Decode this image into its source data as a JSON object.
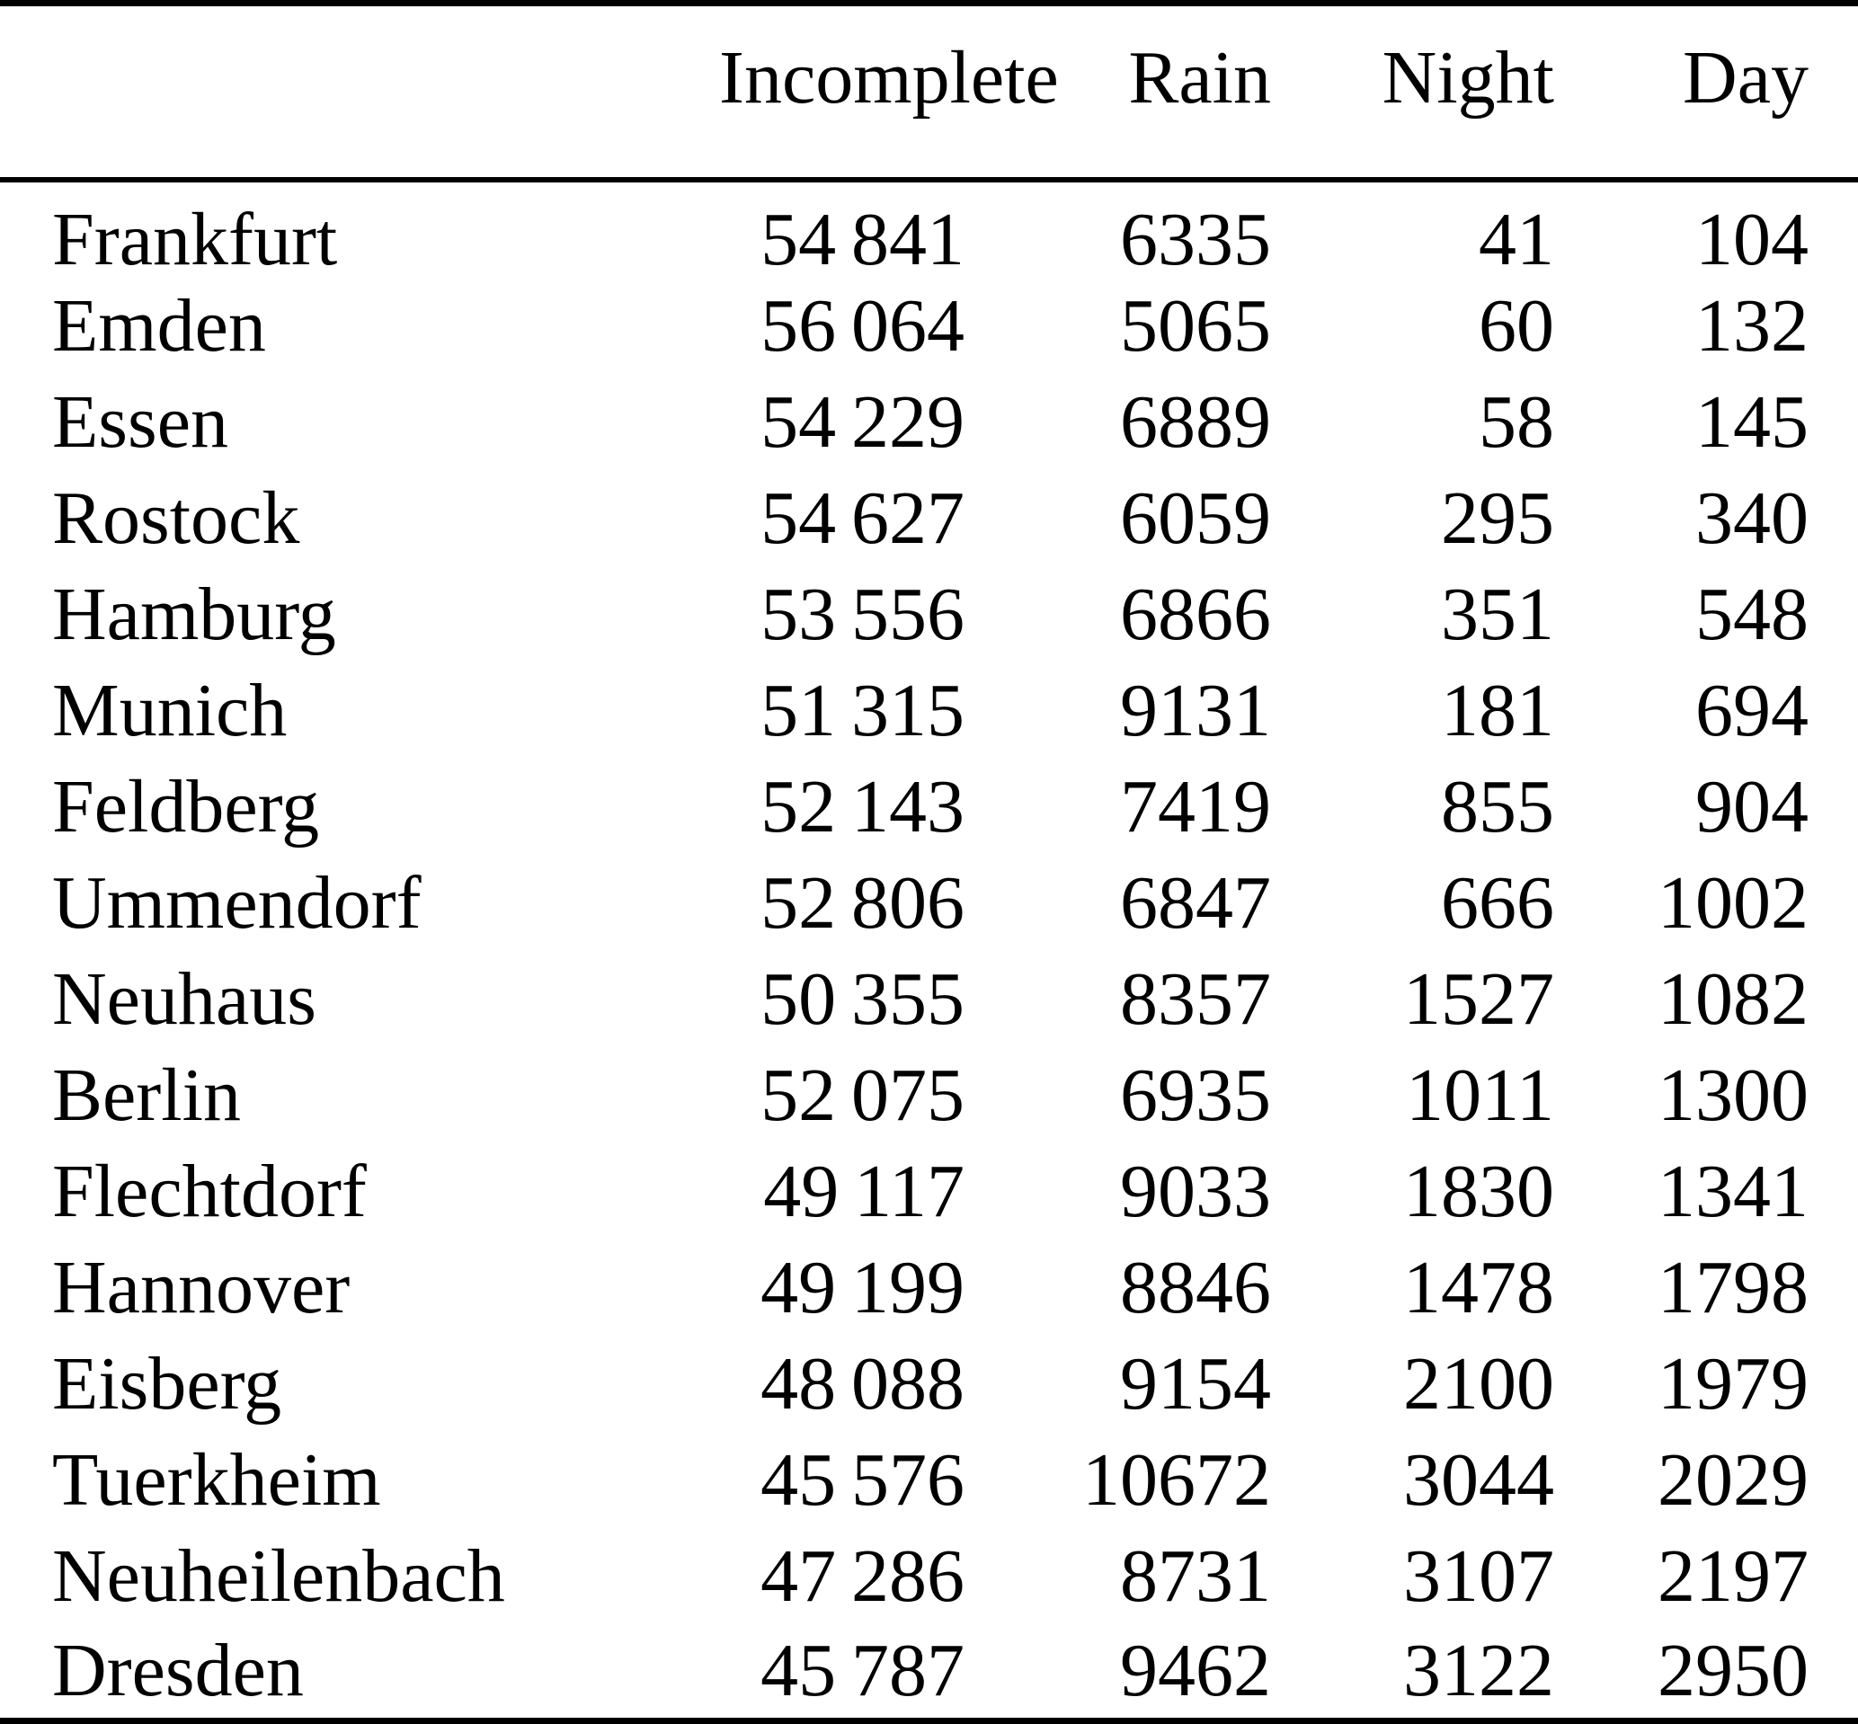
{
  "page": {
    "background": "#ffffff"
  },
  "colors": {
    "text": "#000000",
    "rule": "#000000",
    "background": "#ffffff"
  },
  "table": {
    "name": "precipitation-events-by-station",
    "columns": [
      "",
      "Incomplete",
      "Rain",
      "Night",
      "Day"
    ],
    "rows": [
      {
        "city": "Frankfurt",
        "incomplete": "54 841",
        "rain": "6335",
        "night": "41",
        "day": "104"
      },
      {
        "city": "Emden",
        "incomplete": "56 064",
        "rain": "5065",
        "night": "60",
        "day": "132"
      },
      {
        "city": "Essen",
        "incomplete": "54 229",
        "rain": "6889",
        "night": "58",
        "day": "145"
      },
      {
        "city": "Rostock",
        "incomplete": "54 627",
        "rain": "6059",
        "night": "295",
        "day": "340"
      },
      {
        "city": "Hamburg",
        "incomplete": "53 556",
        "rain": "6866",
        "night": "351",
        "day": "548"
      },
      {
        "city": "Munich",
        "incomplete": "51 315",
        "rain": "9131",
        "night": "181",
        "day": "694"
      },
      {
        "city": "Feldberg",
        "incomplete": "52 143",
        "rain": "7419",
        "night": "855",
        "day": "904"
      },
      {
        "city": "Ummendorf",
        "incomplete": "52 806",
        "rain": "6847",
        "night": "666",
        "day": "1002"
      },
      {
        "city": "Neuhaus",
        "incomplete": "50 355",
        "rain": "8357",
        "night": "1527",
        "day": "1082"
      },
      {
        "city": "Berlin",
        "incomplete": "52 075",
        "rain": "6935",
        "night": "1011",
        "day": "1300"
      },
      {
        "city": "Flechtdorf",
        "incomplete": "49 117",
        "rain": "9033",
        "night": "1830",
        "day": "1341"
      },
      {
        "city": "Hannover",
        "incomplete": "49 199",
        "rain": "8846",
        "night": "1478",
        "day": "1798"
      },
      {
        "city": "Eisberg",
        "incomplete": "48 088",
        "rain": "9154",
        "night": "2100",
        "day": "1979"
      },
      {
        "city": "Tuerkheim",
        "incomplete": "45 576",
        "rain": "10672",
        "night": "3044",
        "day": "2029"
      },
      {
        "city": "Neuheilenbach",
        "incomplete": "47 286",
        "rain": "8731",
        "night": "3107",
        "day": "2197"
      },
      {
        "city": "Dresden",
        "incomplete": "45 787",
        "rain": "9462",
        "night": "3122",
        "day": "2950"
      }
    ]
  }
}
